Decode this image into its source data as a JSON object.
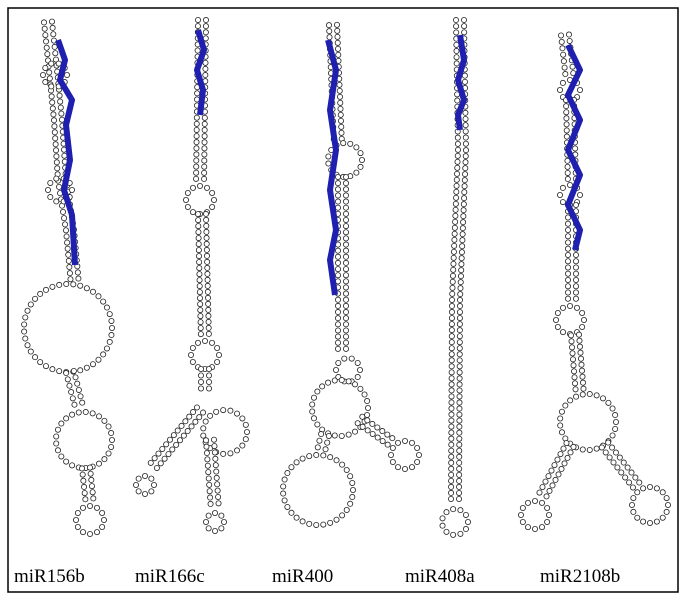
{
  "panels": [
    {
      "label": "miR156b"
    },
    {
      "label": "miR166c"
    },
    {
      "label": "miR400"
    },
    {
      "label": "miR408a"
    },
    {
      "label": "miR2108b"
    }
  ]
}
